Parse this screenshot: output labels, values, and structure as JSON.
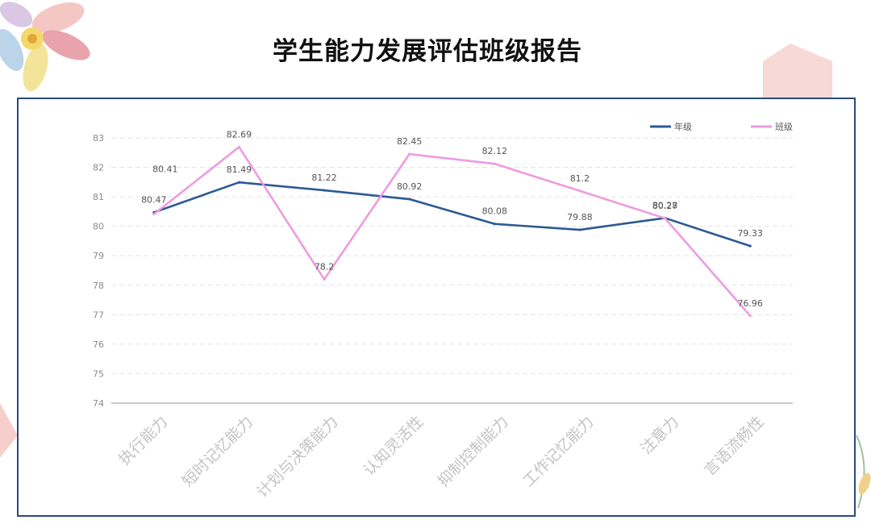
{
  "title": "学生能力发展评估班级报告",
  "chart_data": {
    "type": "line",
    "categories": [
      "执行能力",
      "短时记忆能力",
      "计划与决策能力",
      "认知灵活性",
      "抑制控制能力",
      "工作记忆能力",
      "注意力",
      "言语流畅性"
    ],
    "series": [
      {
        "name": "年级",
        "color": "#2c5a92",
        "values": [
          80.47,
          81.49,
          81.22,
          80.92,
          80.08,
          79.88,
          80.28,
          79.33
        ]
      },
      {
        "name": "班级",
        "color": "#ee9be0",
        "values": [
          80.41,
          82.69,
          78.2,
          82.45,
          82.12,
          81.2,
          80.27,
          76.96
        ]
      }
    ],
    "value_labels": {
      "年级": [
        "80.47",
        "81.49",
        "81.22",
        "80.92",
        "80.08",
        "79.88",
        "80.28",
        "79.33"
      ],
      "班级": [
        "80.41",
        "82.69",
        "78.2",
        "82.45",
        "82.12",
        "81.2",
        "80.27",
        "76.96"
      ]
    },
    "ylim": [
      74,
      83
    ],
    "yticks": [
      "74",
      "75",
      "76",
      "77",
      "78",
      "79",
      "80",
      "81",
      "82",
      "83"
    ],
    "grid": true,
    "legend": "top-right",
    "xlabel": "",
    "ylabel": ""
  }
}
